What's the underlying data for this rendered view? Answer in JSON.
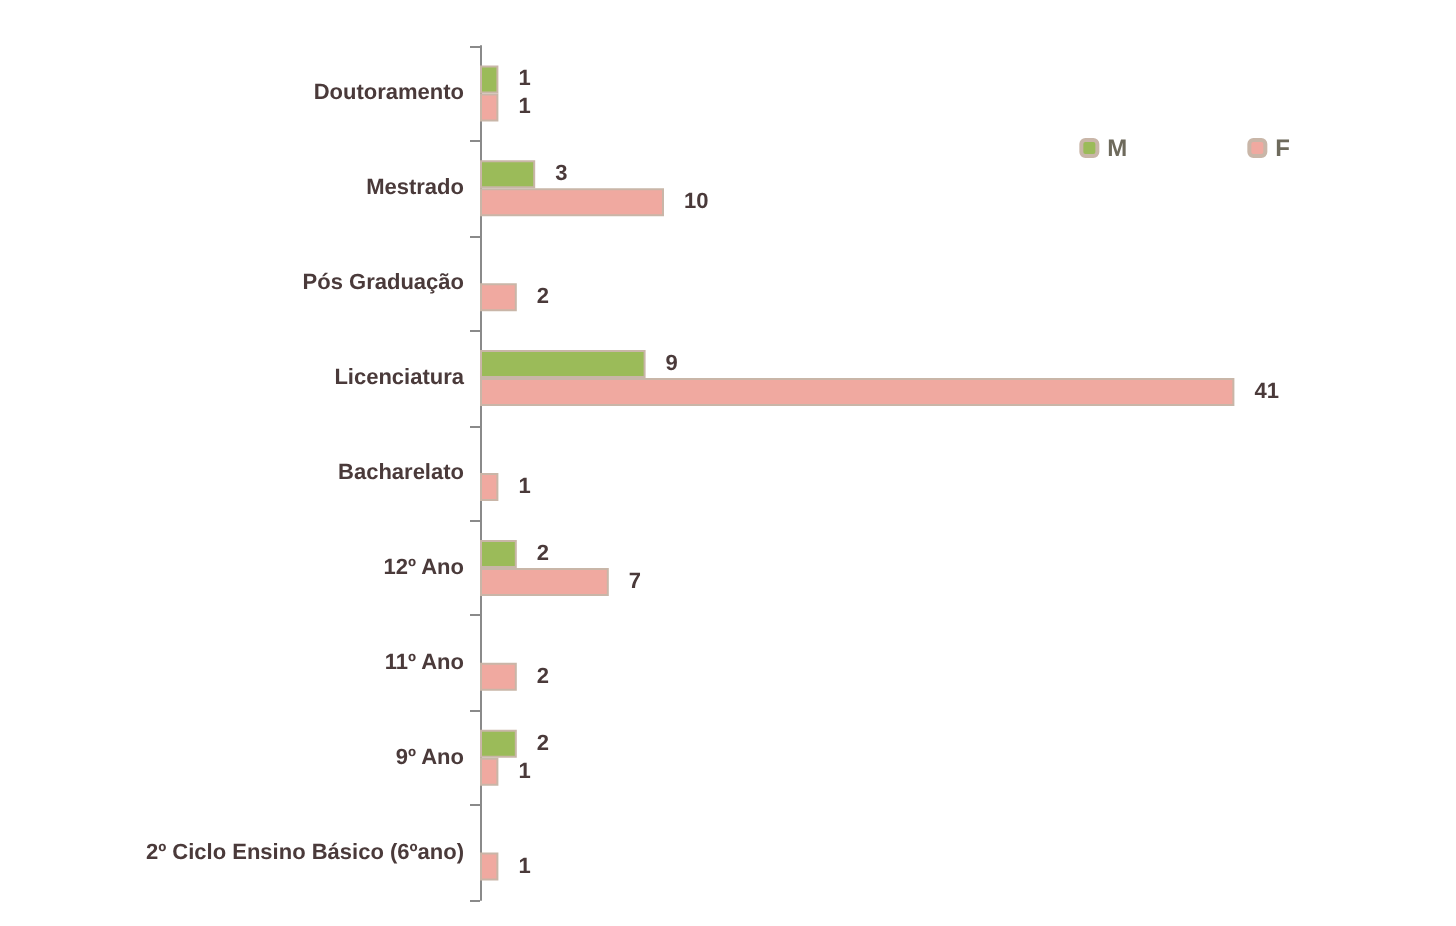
{
  "chart_data": {
    "type": "bar",
    "orientation": "horizontal",
    "data_labels": true,
    "legend": "top right",
    "categories": [
      "Doutoramento",
      "Mestrado",
      "Pós Graduação",
      "Licenciatura",
      "Bacharelato",
      "12º Ano",
      "11º Ano",
      "9º Ano",
      "2º Ciclo Ensino Básico (6ºano)"
    ],
    "series": [
      {
        "name": "M",
        "color": "#9bbb59",
        "values": [
          1,
          3,
          null,
          9,
          null,
          2,
          null,
          2,
          null
        ]
      },
      {
        "name": "F",
        "color": "#f0a9a0",
        "values": [
          1,
          10,
          2,
          41,
          1,
          7,
          2,
          1,
          1
        ]
      }
    ]
  }
}
